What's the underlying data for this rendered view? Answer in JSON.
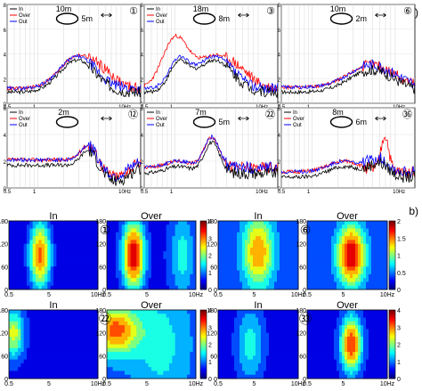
{
  "panel_labels": {
    "a": "a)",
    "b": "b)"
  },
  "spectra": [
    {
      "id": "p1",
      "circled_label": "①",
      "dims": [
        "10m",
        "5m"
      ],
      "legend": [
        "In",
        "Over",
        "Out"
      ],
      "axis": {
        "y_ticks": [
          "0",
          "2",
          "4",
          "6",
          "8"
        ],
        "x_ticks": [
          "0.5",
          "1",
          "10Hz"
        ]
      }
    },
    {
      "id": "p3",
      "circled_label": "③",
      "dims": [
        "18m",
        "8m"
      ],
      "legend": [
        "In",
        "Over",
        "Out"
      ],
      "axis": {
        "y_ticks": [
          "0",
          "2",
          "4",
          "6",
          "8"
        ],
        "x_ticks": [
          "0.5",
          "1",
          "10Hz"
        ]
      }
    },
    {
      "id": "p6",
      "circled_label": "⑥",
      "dims": [
        "10m",
        "2m"
      ],
      "legend": [],
      "axis": {
        "y_ticks": [
          "0",
          "2",
          "4",
          "6",
          "8"
        ],
        "x_ticks": [
          "0.5",
          "1",
          "10Hz"
        ]
      }
    },
    {
      "id": "p12",
      "circled_label": "⑫",
      "dims": [
        "2m"
      ],
      "legend": [
        "In",
        "Over",
        "Out"
      ],
      "axis": {
        "y_ticks": [
          "0",
          "2",
          "4",
          "6"
        ],
        "x_ticks": [
          "0.5",
          "1",
          "10Hz"
        ]
      }
    },
    {
      "id": "p22",
      "circled_label": "㉒",
      "dims": [
        "7m",
        "5m"
      ],
      "legend": [
        "In",
        "Over",
        "Out"
      ],
      "axis": {
        "y_ticks": [
          "0",
          "2",
          "4",
          "6"
        ],
        "x_ticks": [
          "0.5",
          "1",
          "10Hz"
        ]
      }
    },
    {
      "id": "p36",
      "circled_label": "㊱",
      "dims": [
        "8m",
        "6m"
      ],
      "legend": [
        "In",
        "Over",
        "Out"
      ],
      "axis": {
        "y_ticks": [
          "0",
          "2",
          "4",
          "6"
        ],
        "x_ticks": [
          "0.5",
          "1",
          "10Hz"
        ]
      }
    }
  ],
  "contour_groups": [
    {
      "marker": "①",
      "titles": [
        "In",
        "Over"
      ],
      "colorbar_ticks": [
        "0",
        "1",
        "2",
        "3",
        "4"
      ]
    },
    {
      "marker": "⑥",
      "titles": [
        "In",
        "Over"
      ],
      "colorbar_ticks": [
        "0",
        "0.5",
        "1",
        "1.5",
        "2"
      ]
    },
    {
      "marker": "㉒",
      "titles": [
        "In",
        "Over"
      ],
      "colorbar_ticks": [
        "0",
        "1",
        "2",
        "3",
        "4"
      ]
    },
    {
      "marker": "㉝",
      "titles": [
        "In",
        "Over"
      ],
      "colorbar_ticks": [
        "0",
        "1",
        "2",
        "3",
        "4"
      ]
    }
  ],
  "contour_axis": {
    "y_ticks": [
      "0",
      "60",
      "120",
      "180"
    ],
    "x_ticks": [
      "0.5",
      "5",
      "10Hz"
    ]
  },
  "colors": {
    "in": "#000000",
    "over": "#ff0000",
    "out": "#0000ff"
  }
}
